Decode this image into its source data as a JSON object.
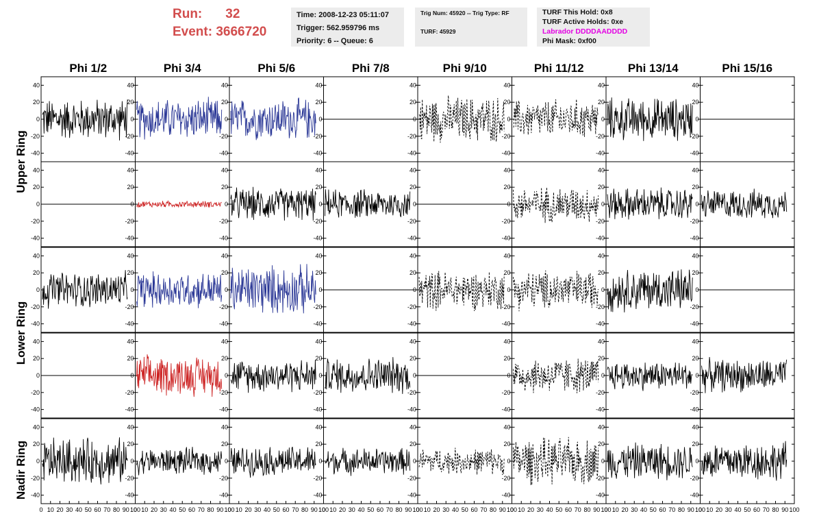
{
  "header": {
    "run_label": "Run:",
    "run_value": "32",
    "event_label": "Event:",
    "event_value": "3666720"
  },
  "info_time": {
    "time": "Time: 2008-12-23 05:11:07",
    "trigger": "Trigger: 562.959796 ms",
    "priority": "Priority: 6 -- Queue: 6"
  },
  "info_trig": {
    "trig": "Trig Num: 45920 -- Trig Type: RF",
    "turf": "TURF: 45929"
  },
  "info_turf": {
    "hold": "TURF This Hold: 0x8",
    "active": "TURF Active Holds: 0xe",
    "labrador": "Labrador DDDDAADDDD",
    "phimask": "Phi Mask: 0xf00"
  },
  "chart_data": {
    "type": "line",
    "columns": [
      "Phi 1/2",
      "Phi 3/4",
      "Phi 5/6",
      "Phi 7/8",
      "Phi 9/10",
      "Phi 11/12",
      "Phi 13/14",
      "Phi 15/16"
    ],
    "ring_labels": [
      "Upper Ring",
      "Lower Ring",
      "Nadir Ring"
    ],
    "xlim": [
      0,
      100
    ],
    "ylim": [
      -50,
      50
    ],
    "y_ticks": [
      -40,
      -20,
      0,
      20,
      40
    ],
    "x_ticks": [
      0,
      10,
      20,
      30,
      40,
      50,
      60,
      70,
      80,
      90,
      100
    ],
    "colors": {
      "black": "#000000",
      "blue": "#2a3796",
      "red": "#cc2020"
    },
    "rows": [
      [
        {
          "color": "black",
          "style": "solid",
          "amplitude": 25
        },
        {
          "color": "blue",
          "style": "solid",
          "amplitude": 25
        },
        {
          "color": "blue",
          "style": "solid",
          "amplitude": 25
        },
        {
          "color": "black",
          "style": "flat",
          "amplitude": 0
        },
        {
          "color": "black",
          "style": "dashed",
          "amplitude": 28
        },
        {
          "color": "black",
          "style": "dashed",
          "amplitude": 24
        },
        {
          "color": "black",
          "style": "solid",
          "amplitude": 26
        },
        {
          "color": "black",
          "style": "flat",
          "amplitude": 0
        }
      ],
      [
        {
          "color": "black",
          "style": "flat",
          "amplitude": 0
        },
        {
          "color": "red",
          "style": "solid",
          "amplitude": 4
        },
        {
          "color": "black",
          "style": "solid",
          "amplitude": 20
        },
        {
          "color": "black",
          "style": "solid",
          "amplitude": 18
        },
        {
          "color": "black",
          "style": "flat",
          "amplitude": 0
        },
        {
          "color": "black",
          "style": "dashed",
          "amplitude": 22
        },
        {
          "color": "black",
          "style": "solid",
          "amplitude": 20
        },
        {
          "color": "black",
          "style": "solid",
          "amplitude": 18
        }
      ],
      [
        {
          "color": "black",
          "style": "solid",
          "amplitude": 22
        },
        {
          "color": "blue",
          "style": "solid",
          "amplitude": 22
        },
        {
          "color": "blue",
          "style": "solid",
          "amplitude": 30
        },
        {
          "color": "black",
          "style": "flat",
          "amplitude": 0
        },
        {
          "color": "black",
          "style": "dashed",
          "amplitude": 24
        },
        {
          "color": "black",
          "style": "dashed",
          "amplitude": 24
        },
        {
          "color": "black",
          "style": "solid",
          "amplitude": 26
        },
        {
          "color": "black",
          "style": "flat",
          "amplitude": 0
        }
      ],
      [
        {
          "color": "black",
          "style": "flat",
          "amplitude": 0
        },
        {
          "color": "red",
          "style": "solid",
          "amplitude": 24
        },
        {
          "color": "black",
          "style": "solid",
          "amplitude": 20
        },
        {
          "color": "black",
          "style": "solid",
          "amplitude": 22
        },
        {
          "color": "black",
          "style": "flat",
          "amplitude": 0
        },
        {
          "color": "black",
          "style": "dashed",
          "amplitude": 22
        },
        {
          "color": "black",
          "style": "solid",
          "amplitude": 18
        },
        {
          "color": "black",
          "style": "solid",
          "amplitude": 20
        }
      ],
      [
        {
          "color": "black",
          "style": "solid",
          "amplitude": 28
        },
        {
          "color": "black",
          "style": "solid",
          "amplitude": 16
        },
        {
          "color": "black",
          "style": "solid",
          "amplitude": 18
        },
        {
          "color": "black",
          "style": "solid",
          "amplitude": 16
        },
        {
          "color": "black",
          "style": "dashed",
          "amplitude": 16
        },
        {
          "color": "black",
          "style": "dashed",
          "amplitude": 28
        },
        {
          "color": "black",
          "style": "solid",
          "amplitude": 22
        },
        {
          "color": "black",
          "style": "solid",
          "amplitude": 24
        }
      ]
    ]
  }
}
